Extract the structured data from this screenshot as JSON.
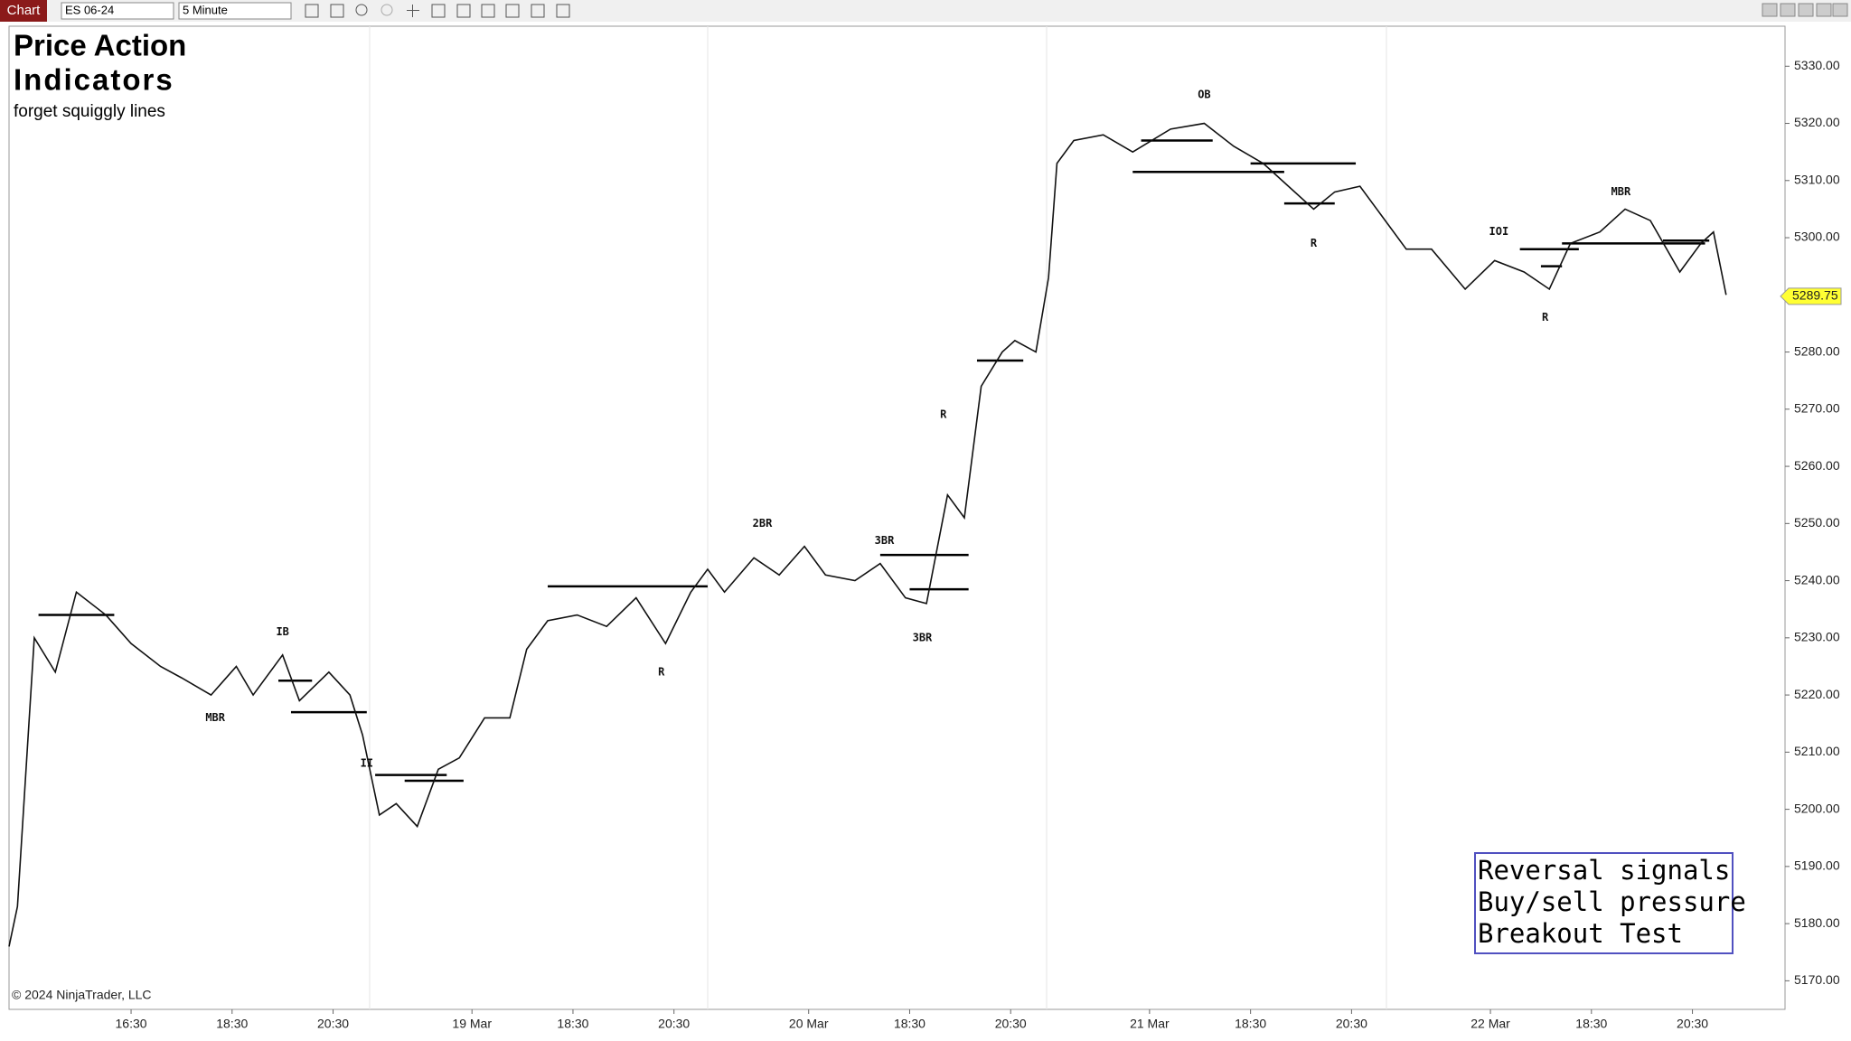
{
  "toolbar": {
    "tab": "Chart",
    "instrument": "ES 06-24",
    "interval": "5 Minute"
  },
  "chart_data": {
    "type": "line",
    "title_lines": [
      "Price Action",
      "Indicators"
    ],
    "subtitle": "forget squiggly lines",
    "color": "#111111",
    "x": [
      0,
      2,
      6,
      11,
      16,
      23,
      29,
      36,
      41,
      48,
      54,
      58,
      65,
      69,
      76,
      81,
      84,
      88,
      92,
      97,
      102,
      107,
      113,
      119,
      123,
      128,
      135,
      142,
      149,
      156,
      162,
      166,
      170,
      177,
      183,
      189,
      194,
      201,
      207,
      213,
      218,
      223,
      227,
      231,
      236,
      239,
      244,
      247,
      249,
      253,
      260,
      267,
      276,
      284,
      291,
      298,
      304,
      310,
      315,
      321,
      326,
      332,
      338,
      346,
      353,
      360,
      366,
      371,
      378,
      384,
      390,
      397,
      402,
      405,
      408
    ],
    "values": [
      5176,
      5183,
      5230,
      5224,
      5238,
      5234,
      5229,
      5225,
      5223,
      5220,
      5225,
      5220,
      5227,
      5219,
      5224,
      5220,
      5213,
      5199,
      5201,
      5197,
      5207,
      5209,
      5216,
      5216,
      5228,
      5233,
      5234,
      5232,
      5237,
      5229,
      5238,
      5242,
      5238,
      5244,
      5241,
      5246,
      5241,
      5240,
      5243,
      5237,
      5236,
      5255,
      5251,
      5274,
      5280,
      5282,
      5280,
      5293,
      5313,
      5317,
      5318,
      5315,
      5319,
      5320,
      5316,
      5313,
      5309,
      5305,
      5308,
      5309,
      5304,
      5298,
      5298,
      5291,
      5296,
      5294,
      5291,
      5299,
      5301,
      5305,
      5303,
      5294,
      5299,
      5301,
      5290
    ],
    "last_price": 5289.75,
    "xlim": [
      0,
      422
    ],
    "xticks": [
      {
        "value": 29,
        "label": "16:30"
      },
      {
        "value": 53,
        "label": "18:30"
      },
      {
        "value": 77,
        "label": "20:30"
      },
      {
        "value": 110,
        "label": "19 Mar"
      },
      {
        "value": 134,
        "label": "18:30"
      },
      {
        "value": 158,
        "label": "20:30"
      },
      {
        "value": 190,
        "label": "20 Mar"
      },
      {
        "value": 214,
        "label": "18:30"
      },
      {
        "value": 238,
        "label": "20:30"
      },
      {
        "value": 271,
        "label": "21 Mar"
      },
      {
        "value": 295,
        "label": "18:30"
      },
      {
        "value": 319,
        "label": "20:30"
      },
      {
        "value": 352,
        "label": "22 Mar"
      },
      {
        "value": 376,
        "label": "18:30"
      },
      {
        "value": 400,
        "label": "20:30"
      }
    ],
    "ylim": [
      5165,
      5337
    ],
    "yticks": [
      {
        "value": 5170,
        "label": "5170.00"
      },
      {
        "value": 5180,
        "label": "5180.00"
      },
      {
        "value": 5190,
        "label": "5190.00"
      },
      {
        "value": 5200,
        "label": "5200.00"
      },
      {
        "value": 5210,
        "label": "5210.00"
      },
      {
        "value": 5220,
        "label": "5220.00"
      },
      {
        "value": 5230,
        "label": "5230.00"
      },
      {
        "value": 5240,
        "label": "5240.00"
      },
      {
        "value": 5250,
        "label": "5250.00"
      },
      {
        "value": 5260,
        "label": "5260.00"
      },
      {
        "value": 5270,
        "label": "5270.00"
      },
      {
        "value": 5280,
        "label": "5280.00"
      },
      {
        "value": 5290,
        "label": "5290.00"
      },
      {
        "value": 5300,
        "label": "5300.00"
      },
      {
        "value": 5310,
        "label": "5310.00"
      },
      {
        "value": 5320,
        "label": "5320.00"
      },
      {
        "value": 5330,
        "label": "5330.00"
      }
    ],
    "levels": [
      {
        "x": [
          7,
          25
        ],
        "y": 5234
      },
      {
        "x": [
          64,
          72
        ],
        "y": 5222.5
      },
      {
        "x": [
          67,
          85
        ],
        "y": 5217
      },
      {
        "x": [
          87,
          104
        ],
        "y": 5206
      },
      {
        "x": [
          94,
          108
        ],
        "y": 5205
      },
      {
        "x": [
          128,
          166
        ],
        "y": 5239
      },
      {
        "x": [
          207,
          228
        ],
        "y": 5244.5
      },
      {
        "x": [
          214,
          228
        ],
        "y": 5238.5
      },
      {
        "x": [
          230,
          241
        ],
        "y": 5278.5
      },
      {
        "x": [
          269,
          286
        ],
        "y": 5317
      },
      {
        "x": [
          267,
          303
        ],
        "y": 5311.5
      },
      {
        "x": [
          295,
          320
        ],
        "y": 5313
      },
      {
        "x": [
          303,
          315
        ],
        "y": 5306
      },
      {
        "x": [
          359,
          373
        ],
        "y": 5298
      },
      {
        "x": [
          364,
          369
        ],
        "y": 5295
      },
      {
        "x": [
          369,
          403
        ],
        "y": 5299
      },
      {
        "x": [
          393,
          404
        ],
        "y": 5299.5
      }
    ],
    "annotations": [
      {
        "text": "OB",
        "x": 284,
        "y": 5325
      },
      {
        "text": "R",
        "x": 310,
        "y": 5299
      },
      {
        "text": "R",
        "x": 365,
        "y": 5286
      },
      {
        "text": "IOI",
        "x": 354,
        "y": 5301
      },
      {
        "text": "MBR",
        "x": 383,
        "y": 5308
      },
      {
        "text": "R",
        "x": 222,
        "y": 5269
      },
      {
        "text": "2BR",
        "x": 179,
        "y": 5250
      },
      {
        "text": "3BR",
        "x": 208,
        "y": 5247
      },
      {
        "text": "3BR",
        "x": 217,
        "y": 5230
      },
      {
        "text": "R",
        "x": 155,
        "y": 5224
      },
      {
        "text": "IB",
        "x": 65,
        "y": 5231
      },
      {
        "text": "MBR",
        "x": 49,
        "y": 5216
      },
      {
        "text": "II",
        "x": 85,
        "y": 5208
      }
    ],
    "legend_lines": [
      "Reversal signals",
      "Buy/sell pressure",
      "Breakout Test"
    ],
    "copyright": "© 2024 NinjaTrader, LLC"
  }
}
